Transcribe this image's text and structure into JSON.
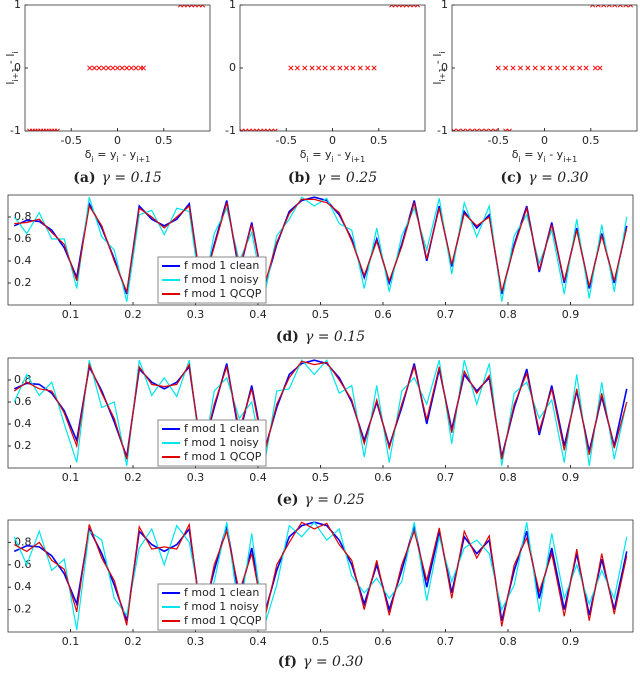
{
  "chart_data": [
    {
      "type": "scatter",
      "label": "(a)",
      "caption": "γ = 0.15",
      "color": "#ff0000",
      "x_label": [
        "δ",
        "i",
        " = y",
        "i",
        " - y",
        "i+1"
      ],
      "y_label": [
        "l",
        "i+1",
        " - l",
        "i"
      ],
      "xlim": [
        -1,
        1
      ],
      "ylim": [
        -1,
        1
      ],
      "xticks": [
        -0.5,
        0,
        0.5
      ],
      "yticks": [
        -1,
        0,
        1
      ],
      "x": [
        -0.95,
        -0.92,
        -0.89,
        -0.86,
        -0.83,
        -0.8,
        -0.77,
        -0.74,
        -0.71,
        -0.68,
        -0.65,
        -0.3,
        -0.25,
        -0.2,
        -0.15,
        -0.1,
        -0.05,
        0,
        0.05,
        0.1,
        0.15,
        0.2,
        0.25,
        0.28,
        0.68,
        0.72,
        0.76,
        0.8,
        0.84,
        0.88,
        0.92
      ],
      "y": [
        -1,
        -1,
        -1,
        -1,
        -1,
        -1,
        -1,
        -1,
        -1,
        -1,
        -1,
        0,
        0,
        0,
        0,
        0,
        0,
        0,
        0,
        0,
        0,
        0,
        0,
        0,
        1,
        1,
        1,
        1,
        1,
        1,
        1
      ]
    },
    {
      "type": "scatter",
      "label": "(b)",
      "caption": "γ = 0.25",
      "color": "#ff0000",
      "x_label": [
        "δ",
        "i",
        " = y",
        "i",
        " - y",
        "i+1"
      ],
      "xlim": [
        -1,
        1
      ],
      "ylim": [
        -1,
        1
      ],
      "xticks": [
        -0.5,
        0,
        0.5
      ],
      "yticks": [
        -1,
        0,
        1
      ],
      "x": [
        -0.98,
        -0.94,
        -0.9,
        -0.86,
        -0.82,
        -0.78,
        -0.74,
        -0.7,
        -0.66,
        -0.62,
        -0.45,
        -0.38,
        -0.3,
        -0.22,
        -0.15,
        -0.08,
        0,
        0.08,
        0.15,
        0.22,
        0.3,
        0.38,
        0.45,
        0.64,
        0.68,
        0.72,
        0.76,
        0.8,
        0.84,
        0.88,
        0.92
      ],
      "y": [
        -1,
        -1,
        -1,
        -1,
        -1,
        -1,
        -1,
        -1,
        -1,
        -1,
        0,
        0,
        0,
        0,
        0,
        0,
        0,
        0,
        0,
        0,
        0,
        0,
        0,
        1,
        1,
        1,
        1,
        1,
        1,
        1,
        1
      ]
    },
    {
      "type": "scatter",
      "label": "(c)",
      "caption": "γ = 0.30",
      "color": "#ff0000",
      "x_label": [
        "δ",
        "i",
        " = y",
        "i",
        " - y",
        "i+1"
      ],
      "y_label": [
        "l",
        "i+1",
        " - l",
        "i"
      ],
      "xlim": [
        -1,
        1
      ],
      "ylim": [
        -1,
        1
      ],
      "xticks": [
        -0.5,
        0,
        0.5
      ],
      "yticks": [
        -1,
        0,
        1
      ],
      "x": [
        -0.98,
        -0.93,
        -0.88,
        -0.83,
        -0.78,
        -0.73,
        -0.68,
        -0.63,
        -0.58,
        -0.53,
        -0.42,
        -0.38,
        -0.5,
        -0.42,
        -0.34,
        -0.26,
        -0.18,
        -0.1,
        -0.02,
        0.06,
        0.14,
        0.22,
        0.3,
        0.38,
        0.45,
        0.55,
        0.6,
        0.52,
        0.58,
        0.64,
        0.7,
        0.76,
        0.82,
        0.88,
        0.93
      ],
      "y": [
        -1,
        -1,
        -1,
        -1,
        -1,
        -1,
        -1,
        -1,
        -1,
        -1,
        -1,
        -1,
        0,
        0,
        0,
        0,
        0,
        0,
        0,
        0,
        0,
        0,
        0,
        0,
        0,
        0,
        0,
        1,
        1,
        1,
        1,
        1,
        1,
        1,
        1
      ]
    },
    {
      "type": "line",
      "label": "(d)",
      "caption": "γ = 0.15",
      "legend": "center",
      "xlim": [
        0,
        1
      ],
      "ylim": [
        0,
        1
      ],
      "xticks": [
        0.1,
        0.2,
        0.3,
        0.4,
        0.5,
        0.6,
        0.7,
        0.8,
        0.9
      ],
      "yticks": [
        0.2,
        0.4,
        0.6,
        0.8
      ],
      "x": [
        0.01,
        0.03,
        0.05,
        0.07,
        0.09,
        0.11,
        0.13,
        0.15,
        0.17,
        0.19,
        0.21,
        0.23,
        0.25,
        0.27,
        0.29,
        0.31,
        0.33,
        0.35,
        0.37,
        0.39,
        0.41,
        0.43,
        0.45,
        0.47,
        0.49,
        0.51,
        0.53,
        0.55,
        0.57,
        0.59,
        0.61,
        0.63,
        0.65,
        0.67,
        0.69,
        0.71,
        0.73,
        0.75,
        0.77,
        0.79,
        0.81,
        0.83,
        0.85,
        0.87,
        0.89,
        0.91,
        0.93,
        0.95,
        0.97,
        0.99
      ],
      "series": [
        {
          "name": "f mod 1 clean",
          "color": "#0000ff",
          "values": [
            0.72,
            0.77,
            0.76,
            0.68,
            0.52,
            0.25,
            0.92,
            0.7,
            0.42,
            0.1,
            0.9,
            0.78,
            0.72,
            0.78,
            0.92,
            0.12,
            0.55,
            0.95,
            0.3,
            0.75,
            0.15,
            0.55,
            0.85,
            0.95,
            0.98,
            0.95,
            0.82,
            0.6,
            0.25,
            0.6,
            0.2,
            0.55,
            0.95,
            0.4,
            0.9,
            0.35,
            0.85,
            0.7,
            0.82,
            0.1,
            0.55,
            0.9,
            0.3,
            0.75,
            0.2,
            0.7,
            0.15,
            0.65,
            0.2,
            0.72
          ]
        },
        {
          "name": "f mod 1 noisy",
          "color": "#00e5ee",
          "values": [
            0.8,
            0.65,
            0.84,
            0.6,
            0.6,
            0.15,
            0.98,
            0.62,
            0.5,
            0.03,
            0.82,
            0.86,
            0.64,
            0.88,
            0.85,
            0.04,
            0.65,
            0.88,
            0.4,
            0.66,
            0.08,
            0.63,
            0.78,
            0.98,
            0.9,
            0.97,
            0.74,
            0.68,
            0.15,
            0.7,
            0.12,
            0.63,
            0.88,
            0.5,
            0.97,
            0.28,
            0.93,
            0.62,
            0.9,
            0.03,
            0.63,
            0.82,
            0.38,
            0.68,
            0.1,
            0.78,
            0.06,
            0.73,
            0.12,
            0.8
          ]
        },
        {
          "name": "f mod 1 QCQP",
          "color": "#e00000",
          "values": [
            0.74,
            0.75,
            0.78,
            0.66,
            0.55,
            0.22,
            0.9,
            0.72,
            0.4,
            0.12,
            0.88,
            0.8,
            0.7,
            0.8,
            0.9,
            0.14,
            0.53,
            0.93,
            0.33,
            0.73,
            0.17,
            0.57,
            0.83,
            0.96,
            0.96,
            0.93,
            0.84,
            0.58,
            0.27,
            0.58,
            0.22,
            0.53,
            0.93,
            0.42,
            0.88,
            0.37,
            0.83,
            0.72,
            0.8,
            0.12,
            0.53,
            0.88,
            0.32,
            0.73,
            0.22,
            0.68,
            0.17,
            0.63,
            0.22,
            0.7
          ]
        }
      ]
    },
    {
      "type": "line",
      "label": "(e)",
      "caption": "γ = 0.25",
      "legend": "center",
      "xlim": [
        0,
        1
      ],
      "ylim": [
        0,
        1
      ],
      "xticks": [
        0.1,
        0.2,
        0.3,
        0.4,
        0.5,
        0.6,
        0.7,
        0.8,
        0.9
      ],
      "yticks": [
        0.2,
        0.4,
        0.6,
        0.8
      ],
      "x": [
        0.01,
        0.03,
        0.05,
        0.07,
        0.09,
        0.11,
        0.13,
        0.15,
        0.17,
        0.19,
        0.21,
        0.23,
        0.25,
        0.27,
        0.29,
        0.31,
        0.33,
        0.35,
        0.37,
        0.39,
        0.41,
        0.43,
        0.45,
        0.47,
        0.49,
        0.51,
        0.53,
        0.55,
        0.57,
        0.59,
        0.61,
        0.63,
        0.65,
        0.67,
        0.69,
        0.71,
        0.73,
        0.75,
        0.77,
        0.79,
        0.81,
        0.83,
        0.85,
        0.87,
        0.89,
        0.91,
        0.93,
        0.95,
        0.97,
        0.99
      ],
      "series": [
        {
          "name": "f mod 1 clean",
          "color": "#0000ff",
          "values": [
            0.72,
            0.77,
            0.76,
            0.68,
            0.52,
            0.25,
            0.92,
            0.7,
            0.42,
            0.1,
            0.9,
            0.78,
            0.72,
            0.78,
            0.92,
            0.12,
            0.55,
            0.95,
            0.3,
            0.75,
            0.15,
            0.55,
            0.85,
            0.95,
            0.98,
            0.95,
            0.82,
            0.6,
            0.25,
            0.6,
            0.2,
            0.55,
            0.95,
            0.4,
            0.9,
            0.35,
            0.85,
            0.7,
            0.82,
            0.1,
            0.55,
            0.9,
            0.3,
            0.75,
            0.2,
            0.7,
            0.15,
            0.65,
            0.2,
            0.72
          ]
        },
        {
          "name": "f mod 1 noisy",
          "color": "#00e5ee",
          "values": [
            0.6,
            0.85,
            0.66,
            0.78,
            0.4,
            0.05,
            0.98,
            0.55,
            0.6,
            0.02,
            0.98,
            0.66,
            0.82,
            0.65,
            0.98,
            0.02,
            0.7,
            0.82,
            0.45,
            0.6,
            0.02,
            0.7,
            0.72,
            0.98,
            0.85,
            0.98,
            0.68,
            0.75,
            0.1,
            0.75,
            0.05,
            0.7,
            0.82,
            0.58,
            0.98,
            0.22,
            0.98,
            0.58,
            0.95,
            0.02,
            0.68,
            0.78,
            0.45,
            0.62,
            0.05,
            0.85,
            0.02,
            0.78,
            0.08,
            0.6
          ]
        },
        {
          "name": "f mod 1 QCQP",
          "color": "#e00000",
          "values": [
            0.7,
            0.78,
            0.72,
            0.7,
            0.5,
            0.2,
            0.94,
            0.68,
            0.45,
            0.08,
            0.92,
            0.76,
            0.74,
            0.76,
            0.94,
            0.1,
            0.58,
            0.92,
            0.35,
            0.72,
            0.12,
            0.58,
            0.82,
            0.97,
            0.94,
            0.96,
            0.8,
            0.62,
            0.22,
            0.62,
            0.18,
            0.58,
            0.92,
            0.44,
            0.92,
            0.32,
            0.88,
            0.68,
            0.84,
            0.08,
            0.58,
            0.86,
            0.34,
            0.72,
            0.16,
            0.72,
            0.12,
            0.68,
            0.18,
            0.6
          ]
        }
      ]
    },
    {
      "type": "line",
      "label": "(f)",
      "caption": "γ = 0.30",
      "legend": "center",
      "xlim": [
        0,
        1
      ],
      "ylim": [
        0,
        1
      ],
      "xticks": [
        0.1,
        0.2,
        0.3,
        0.4,
        0.5,
        0.6,
        0.7,
        0.8,
        0.9
      ],
      "yticks": [
        0.2,
        0.4,
        0.6,
        0.8
      ],
      "x": [
        0.01,
        0.03,
        0.05,
        0.07,
        0.09,
        0.11,
        0.13,
        0.15,
        0.17,
        0.19,
        0.21,
        0.23,
        0.25,
        0.27,
        0.29,
        0.31,
        0.33,
        0.35,
        0.37,
        0.39,
        0.41,
        0.43,
        0.45,
        0.47,
        0.49,
        0.51,
        0.53,
        0.55,
        0.57,
        0.59,
        0.61,
        0.63,
        0.65,
        0.67,
        0.69,
        0.71,
        0.73,
        0.75,
        0.77,
        0.79,
        0.81,
        0.83,
        0.85,
        0.87,
        0.89,
        0.91,
        0.93,
        0.95,
        0.97,
        0.99
      ],
      "series": [
        {
          "name": "f mod 1 clean",
          "color": "#0000ff",
          "values": [
            0.72,
            0.77,
            0.76,
            0.68,
            0.52,
            0.25,
            0.92,
            0.7,
            0.42,
            0.1,
            0.9,
            0.78,
            0.72,
            0.78,
            0.92,
            0.12,
            0.55,
            0.95,
            0.3,
            0.75,
            0.15,
            0.55,
            0.85,
            0.95,
            0.98,
            0.95,
            0.82,
            0.6,
            0.25,
            0.6,
            0.2,
            0.55,
            0.95,
            0.4,
            0.9,
            0.35,
            0.85,
            0.7,
            0.82,
            0.1,
            0.55,
            0.9,
            0.3,
            0.75,
            0.2,
            0.7,
            0.15,
            0.65,
            0.2,
            0.72
          ]
        },
        {
          "name": "f mod 1 noisy",
          "color": "#00e5ee",
          "values": [
            0.85,
            0.6,
            0.9,
            0.55,
            0.65,
            0.02,
            0.9,
            0.82,
            0.3,
            0.15,
            0.75,
            0.92,
            0.6,
            0.95,
            0.8,
            0.2,
            0.45,
            0.98,
            0.15,
            0.88,
            0.05,
            0.42,
            0.95,
            0.85,
            0.98,
            0.82,
            0.92,
            0.5,
            0.35,
            0.48,
            0.3,
            0.45,
            0.98,
            0.28,
            0.85,
            0.45,
            0.75,
            0.82,
            0.7,
            0.2,
            0.42,
            0.98,
            0.18,
            0.88,
            0.3,
            0.6,
            0.25,
            0.55,
            0.3,
            0.85
          ]
        },
        {
          "name": "f mod 1 QCQP",
          "color": "#e00000",
          "values": [
            0.78,
            0.72,
            0.8,
            0.64,
            0.56,
            0.18,
            0.96,
            0.66,
            0.46,
            0.06,
            0.94,
            0.74,
            0.76,
            0.74,
            0.96,
            0.06,
            0.6,
            0.9,
            0.36,
            0.7,
            0.1,
            0.6,
            0.8,
            0.98,
            0.92,
            0.97,
            0.78,
            0.64,
            0.2,
            0.64,
            0.15,
            0.6,
            0.9,
            0.46,
            0.93,
            0.3,
            0.9,
            0.66,
            0.86,
            0.05,
            0.6,
            0.84,
            0.36,
            0.7,
            0.14,
            0.74,
            0.1,
            0.7,
            0.16,
            0.68
          ]
        }
      ]
    }
  ]
}
